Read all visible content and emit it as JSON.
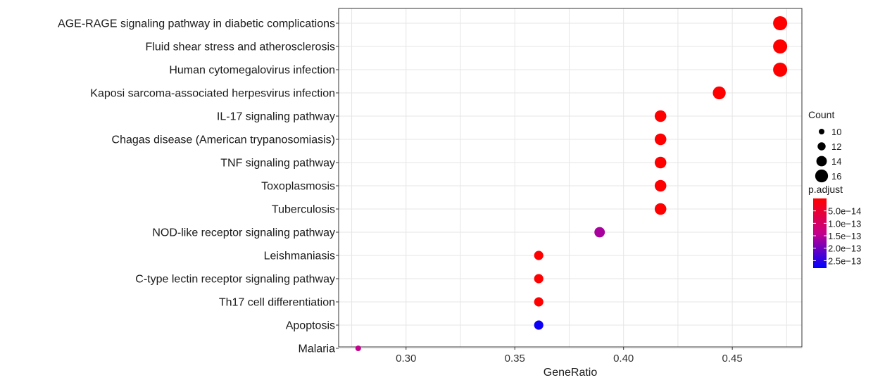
{
  "chart_data": {
    "type": "scatter",
    "title": "",
    "xlabel": "GeneRatio",
    "ylabel": "",
    "xlim": [
      0.269,
      0.482
    ],
    "xticks": [
      0.3,
      0.35,
      0.4,
      0.45
    ],
    "xtick_labels": [
      "0.30",
      "0.35",
      "0.40",
      "0.45"
    ],
    "grid": true,
    "legend_placement": "right",
    "points": [
      {
        "term": "AGE-RAGE signaling pathway in diabetic complications",
        "gene_ratio": 0.472,
        "count": 17,
        "p_adjust": 1e-15
      },
      {
        "term": "Fluid shear stress and atherosclerosis",
        "gene_ratio": 0.472,
        "count": 17,
        "p_adjust": 1e-15
      },
      {
        "term": "Human cytomegalovirus infection",
        "gene_ratio": 0.472,
        "count": 17,
        "p_adjust": 1e-15
      },
      {
        "term": "Kaposi sarcoma-associated herpesvirus infection",
        "gene_ratio": 0.444,
        "count": 16,
        "p_adjust": 1e-15
      },
      {
        "term": "IL-17 signaling pathway",
        "gene_ratio": 0.417,
        "count": 15,
        "p_adjust": 1e-15
      },
      {
        "term": "Chagas disease (American trypanosomiasis)",
        "gene_ratio": 0.417,
        "count": 15,
        "p_adjust": 1e-15
      },
      {
        "term": "TNF signaling pathway",
        "gene_ratio": 0.417,
        "count": 15,
        "p_adjust": 1e-15
      },
      {
        "term": "Toxoplasmosis",
        "gene_ratio": 0.417,
        "count": 15,
        "p_adjust": 1e-15
      },
      {
        "term": "Tuberculosis",
        "gene_ratio": 0.417,
        "count": 15,
        "p_adjust": 1e-15
      },
      {
        "term": "NOD-like receptor signaling pathway",
        "gene_ratio": 0.389,
        "count": 14,
        "p_adjust": 1.6e-13
      },
      {
        "term": "Leishmaniasis",
        "gene_ratio": 0.361,
        "count": 13,
        "p_adjust": 1e-15
      },
      {
        "term": "C-type lectin receptor signaling pathway",
        "gene_ratio": 0.361,
        "count": 13,
        "p_adjust": 1e-15
      },
      {
        "term": "Th17 cell differentiation",
        "gene_ratio": 0.361,
        "count": 13,
        "p_adjust": 1e-15
      },
      {
        "term": "Apoptosis",
        "gene_ratio": 0.361,
        "count": 13,
        "p_adjust": 2.7e-13
      },
      {
        "term": "Malaria",
        "gene_ratio": 0.278,
        "count": 10,
        "p_adjust": 1.4e-13
      }
    ],
    "size_legend": {
      "title": "Count",
      "values": [
        10,
        12,
        14,
        16
      ],
      "labels": [
        "10",
        "12",
        "14",
        "16"
      ]
    },
    "color_legend": {
      "title": "p.adjust",
      "low_color": "#FF0000",
      "high_color": "#0000FF",
      "range": [
        0,
        2.8e-13
      ],
      "ticks": [
        5e-14,
        1e-13,
        1.5e-13,
        2e-13,
        2.5e-13
      ],
      "tick_labels": [
        "5.0e−14",
        "1.0e−13",
        "1.5e−13",
        "2.0e−13",
        "2.5e−13"
      ]
    }
  }
}
